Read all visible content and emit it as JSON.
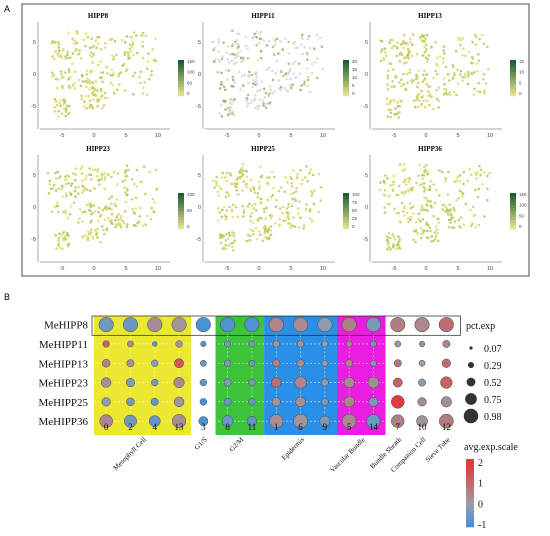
{
  "panel_labels": {
    "a": "A",
    "b": "B"
  },
  "umap_panels": [
    {
      "title": "HIPP8",
      "colorbar_ticks": [
        "150",
        "100",
        "50",
        "0"
      ],
      "low": "#e6e08a",
      "high": "#1b5e2f"
    },
    {
      "title": "HIPP11",
      "colorbar_ticks": [
        "20",
        "15",
        "10",
        "5",
        "0"
      ],
      "low": "#e6e08a",
      "high": "#1b5e2f"
    },
    {
      "title": "HIPP13",
      "colorbar_ticks": [
        "15",
        "10",
        "5",
        "0"
      ],
      "low": "#e6e08a",
      "high": "#1b5e2f"
    },
    {
      "title": "HIPP23",
      "colorbar_ticks": [
        "100",
        "50",
        "0"
      ],
      "low": "#e6e08a",
      "high": "#1b5e2f"
    },
    {
      "title": "HIPP25",
      "colorbar_ticks": [
        "100",
        "75",
        "50",
        "25",
        "0"
      ],
      "low": "#e6e08a",
      "high": "#1b5e2f"
    },
    {
      "title": "HIPP36",
      "colorbar_ticks": [
        "150",
        "100",
        "50",
        "0"
      ],
      "low": "#e6e08a",
      "high": "#1b5e2f"
    }
  ],
  "umap_axes": {
    "x_ticks": [
      "-5",
      "0",
      "5",
      "10"
    ],
    "y_ticks": [
      "5",
      "0",
      "-5"
    ]
  },
  "chart_data": {
    "type": "scatter",
    "genes": [
      "MeHIPP8",
      "MeHIPP11",
      "MeHIPP13",
      "MeHIPP23",
      "MeHIPP25",
      "MeHIPP36"
    ],
    "clusters": [
      "0",
      "2",
      "4",
      "13",
      "3",
      "8",
      "11",
      "1",
      "6",
      "9",
      "5",
      "14",
      "7",
      "10",
      "12"
    ],
    "groups": [
      {
        "name": "Mesophyll Cell",
        "clusters": [
          "0",
          "2",
          "4",
          "13"
        ],
        "color": "#ece832"
      },
      {
        "name": "G1/S",
        "clusters": [
          "3"
        ],
        "color": "#ffffff"
      },
      {
        "name": "G2/M",
        "clusters": [
          "8",
          "11"
        ],
        "color": "#3ec43b"
      },
      {
        "name": "Epidermis",
        "clusters": [
          "1",
          "6",
          "9"
        ],
        "color": "#2a8fe6"
      },
      {
        "name": "Vascular Bundle",
        "clusters": [
          "5",
          "14"
        ],
        "color": "#ea1de0"
      },
      {
        "name": "Bundle Sheath",
        "clusters": [
          "7"
        ],
        "color": "#ffffff"
      },
      {
        "name": "Companion Cell",
        "clusters": [
          "10"
        ],
        "color": "#ffffff"
      },
      {
        "name": "Sieve Tube",
        "clusters": [
          "12"
        ],
        "color": "#ffffff"
      }
    ],
    "pct_exp": [
      [
        0.98,
        0.98,
        0.98,
        0.98,
        0.98,
        0.98,
        0.98,
        0.98,
        0.98,
        0.98,
        0.98,
        0.98,
        0.98,
        0.98,
        0.98
      ],
      [
        0.35,
        0.3,
        0.2,
        0.35,
        0.25,
        0.3,
        0.3,
        0.35,
        0.35,
        0.3,
        0.3,
        0.3,
        0.3,
        0.25,
        0.4
      ],
      [
        0.45,
        0.4,
        0.35,
        0.55,
        0.3,
        0.35,
        0.3,
        0.4,
        0.4,
        0.3,
        0.4,
        0.3,
        0.4,
        0.3,
        0.5
      ],
      [
        0.6,
        0.5,
        0.35,
        0.65,
        0.35,
        0.4,
        0.35,
        0.6,
        0.75,
        0.4,
        0.65,
        0.7,
        0.55,
        0.4,
        0.75
      ],
      [
        0.5,
        0.45,
        0.4,
        0.6,
        0.35,
        0.4,
        0.35,
        0.5,
        0.6,
        0.4,
        0.65,
        0.55,
        0.85,
        0.5,
        0.65
      ],
      [
        0.85,
        0.8,
        0.7,
        0.9,
        0.55,
        0.7,
        0.6,
        0.9,
        0.95,
        0.65,
        0.95,
        0.9,
        0.85,
        0.7,
        0.95
      ]
    ],
    "avg_exp_scale": [
      [
        -0.5,
        -0.6,
        0.3,
        0.2,
        -1.0,
        -0.9,
        -0.9,
        0.5,
        0.4,
        -0.2,
        0.6,
        -0.4,
        0.7,
        0.5,
        1.0
      ],
      [
        1.2,
        0.4,
        -0.8,
        0.2,
        -0.8,
        -0.5,
        -0.5,
        0.3,
        0.2,
        0.0,
        0.4,
        -0.4,
        0.2,
        0.3,
        0.5
      ],
      [
        0.6,
        0.3,
        -0.2,
        1.5,
        -0.6,
        -0.4,
        -0.5,
        0.6,
        0.3,
        -0.1,
        0.5,
        -0.3,
        0.8,
        0.0,
        1.0
      ],
      [
        0.3,
        -0.3,
        -0.4,
        0.4,
        -0.7,
        -0.3,
        -0.4,
        1.0,
        0.5,
        -0.2,
        0.4,
        0.3,
        1.2,
        -0.2,
        1.2
      ],
      [
        -0.2,
        -0.4,
        -0.7,
        0.2,
        -1.0,
        -0.6,
        -0.6,
        0.2,
        0.3,
        -0.4,
        0.5,
        -0.4,
        2.0,
        0.3,
        0.3
      ],
      [
        0.5,
        -0.5,
        -0.7,
        0.3,
        -1.0,
        -0.6,
        -0.7,
        0.3,
        0.2,
        -0.4,
        0.4,
        -0.6,
        0.6,
        0.2,
        0.7
      ]
    ],
    "size_legend": {
      "title": "pct.exp",
      "values": [
        "0.07",
        "0.29",
        "0.52",
        "0.75",
        "0.98"
      ]
    },
    "color_legend": {
      "title": "avg.exp.scale",
      "ticks": [
        "2",
        "1",
        "0",
        "-1"
      ],
      "low": "#3a8fe0",
      "mid": "#9a9ea6",
      "high": "#e03c3c"
    }
  }
}
